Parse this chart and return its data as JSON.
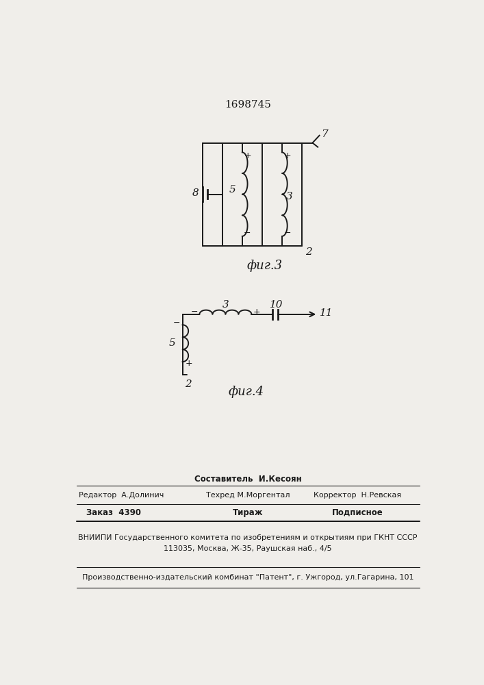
{
  "patent_number": "1698745",
  "fig3_caption": "фиг.3",
  "fig4_caption": "фиг.4",
  "bg_color": "#f0eeea",
  "line_color": "#1a1a1a",
  "footer": {
    "comp": "Составитель  И.Кесоян",
    "editor": "Редактор  А.Долинич",
    "tech": "Техред М.Моргентал",
    "corr": "Корректор  Н.Ревская",
    "order": "Заказ  4390",
    "tirazh": "Тираж",
    "podp": "Подписное",
    "vniip": "ВНИИПИ Государственного комитета по изобретениям и открытиям при ГКНТ СССР",
    "addr": "113035, Москва, Ж-35, Раушская наб., 4/5",
    "prod": "Производственно-издательский комбинат \"Патент\", г. Ужгород, ул.Гагарина, 101"
  }
}
